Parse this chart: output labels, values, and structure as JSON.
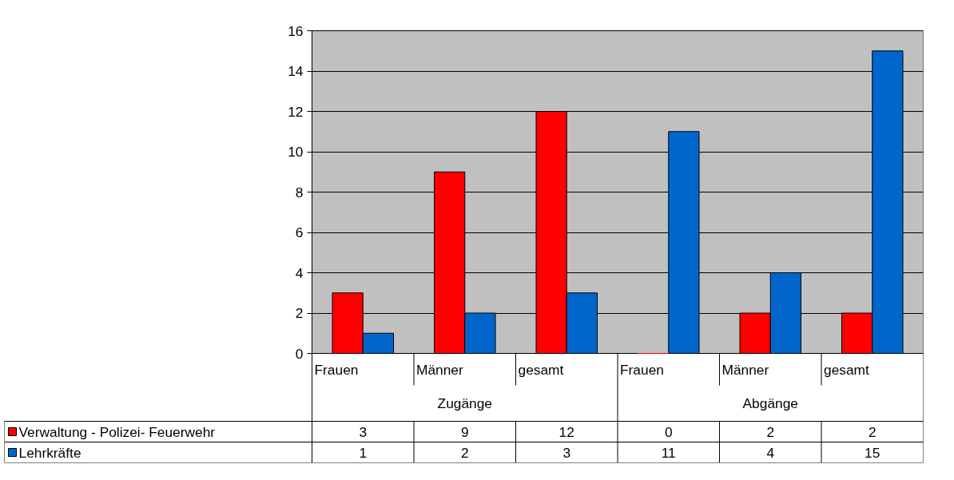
{
  "chart_data": {
    "type": "bar",
    "categories": [
      "Frauen",
      "Männer",
      "gesamt",
      "Frauen",
      "Männer",
      "gesamt"
    ],
    "series": [
      {
        "name": "Verwaltung - Polizei- Feuerwehr",
        "color": "#ff0000",
        "values": [
          3,
          9,
          12,
          0,
          2,
          2
        ]
      },
      {
        "name": "Lehrkräfte",
        "color": "#0066cc",
        "values": [
          1,
          2,
          3,
          11,
          4,
          15
        ]
      }
    ],
    "ylim": [
      0,
      16
    ],
    "yticks": [
      0,
      2,
      4,
      6,
      8,
      10,
      12,
      14,
      16
    ],
    "grid": "y",
    "legend": "bottom left",
    "data_labels": true,
    "annotations": [
      "Zugänge",
      "Abgänge"
    ]
  }
}
